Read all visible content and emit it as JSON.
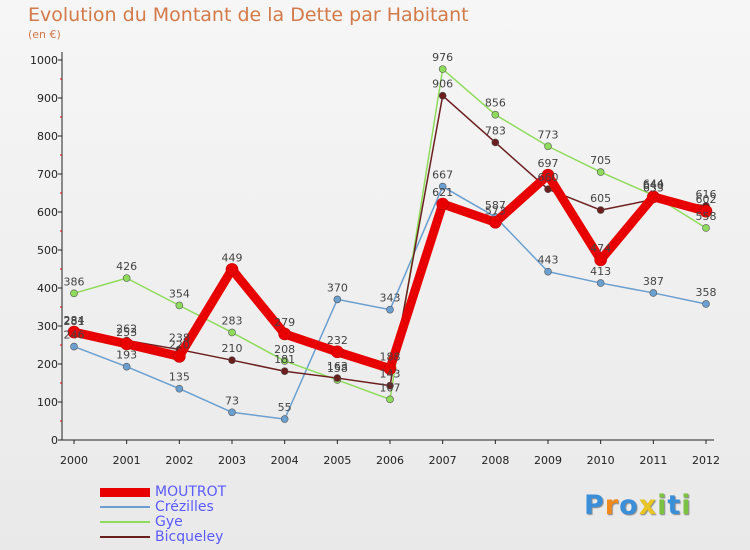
{
  "title": "Evolution du Montant de la Dette par Habitant",
  "subtitle": "(en €)",
  "logo": {
    "letters": [
      "P",
      "r",
      "o",
      "x",
      "i",
      "t",
      "i"
    ],
    "colors": [
      "#3a8fd8",
      "#f08a1c",
      "#3a8fd8",
      "#e9c521",
      "#7cc242",
      "#3a8fd8",
      "#7cc242"
    ]
  },
  "chart_data": {
    "type": "line",
    "x": [
      "2000",
      "2001",
      "2002",
      "2003",
      "2004",
      "2005",
      "2006",
      "2007",
      "2008",
      "2009",
      "2010",
      "2011",
      "2012"
    ],
    "ylim": [
      0,
      1000
    ],
    "yticks": [
      "0",
      "100",
      "200",
      "300",
      "400",
      "500",
      "600",
      "700",
      "800",
      "900",
      "1000"
    ],
    "grid": false,
    "legend": "bottom-left",
    "series": [
      {
        "name": "MOUTROT",
        "color": "#e80000",
        "width": 9,
        "values": [
          284,
          253,
          220,
          449,
          279,
          232,
          188,
          621,
          573,
          697,
          474,
          640,
          602
        ]
      },
      {
        "name": "Crézilles",
        "color": "#6a9fcf",
        "width": 1.5,
        "values": [
          246,
          193,
          135,
          73,
          55,
          370,
          343,
          667,
          587,
          443,
          413,
          387,
          358
        ]
      },
      {
        "name": "Gye",
        "color": "#8fdb5b",
        "width": 1.5,
        "values": [
          386,
          426,
          354,
          283,
          208,
          158,
          107,
          976,
          856,
          773,
          705,
          644,
          558
        ]
      },
      {
        "name": "Bicqueley",
        "color": "#6b1e1e",
        "width": 1.5,
        "values": [
          281,
          262,
          238,
          210,
          181,
          163,
          143,
          906,
          783,
          660,
          605,
          633,
          616
        ]
      }
    ]
  }
}
